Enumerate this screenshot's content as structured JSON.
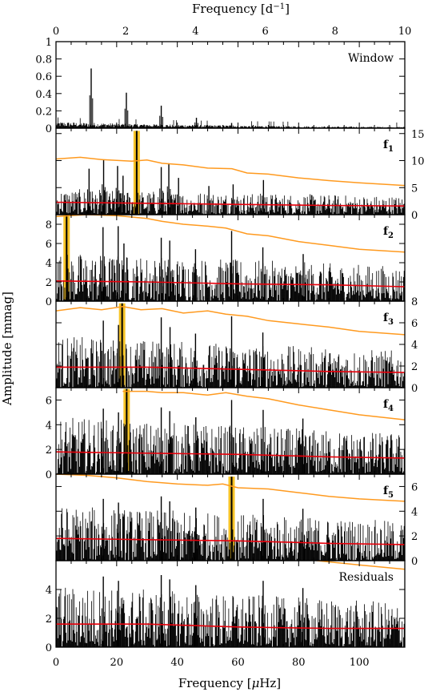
{
  "chart_data": {
    "type": "line",
    "x_axis_bottom": {
      "label_prefix": "Frequency [",
      "label_unit_mu": "μ",
      "label_unit_rest": "Hz]",
      "range": [
        0,
        115
      ],
      "ticks": [
        0,
        20,
        40,
        60,
        80,
        100
      ]
    },
    "x_axis_top": {
      "label_prefix": "Frequency [d",
      "label_exponent": "−1",
      "label_suffix": "]",
      "range": [
        0,
        10
      ],
      "ticks": [
        0,
        2,
        4,
        6,
        8,
        10
      ]
    },
    "y_axis_label": "Amplitude [mmag]",
    "panels": [
      {
        "label": "Window",
        "ylim": [
          0,
          1
        ],
        "ticks": [
          0,
          0.2,
          0.4,
          0.6,
          0.8,
          1
        ],
        "tick_labels": [
          "0",
          "0.2",
          "0.4",
          "0.6",
          "0.8",
          "1"
        ],
        "ticks_side": "left",
        "peaks": [
          {
            "x": 11.6,
            "y": 0.69
          },
          {
            "x": 23.2,
            "y": 0.41
          },
          {
            "x": 34.7,
            "y": 0.26
          },
          {
            "x": 46.3,
            "y": 0.12
          },
          {
            "x": 57.9,
            "y": 0.06
          }
        ],
        "noise_level": 0.05,
        "significance": [],
        "mean_noise": []
      },
      {
        "label": "f",
        "subscript": "1",
        "ylim": [
          0,
          16
        ],
        "ticks": [
          0,
          5,
          10,
          15
        ],
        "tick_labels": [
          "0",
          "5",
          "10",
          "15"
        ],
        "ticks_side": "right",
        "highlight": {
          "x": 26.6,
          "y": 15.5
        },
        "peaks": [
          {
            "x": 10.9,
            "y": 8.5
          },
          {
            "x": 15.7,
            "y": 10.2
          },
          {
            "x": 20.3,
            "y": 9.0
          },
          {
            "x": 22.1,
            "y": 7.2
          },
          {
            "x": 34.7,
            "y": 8.8
          },
          {
            "x": 37.2,
            "y": 9.5
          },
          {
            "x": 40.4,
            "y": 6.8
          },
          {
            "x": 50.4,
            "y": 5.3
          },
          {
            "x": 58.4,
            "y": 5.6
          },
          {
            "x": 68.4,
            "y": 6.4
          }
        ],
        "noise_level": 3.0,
        "significance": [
          {
            "x": 0,
            "y": 10.3
          },
          {
            "x": 8,
            "y": 10.6
          },
          {
            "x": 15,
            "y": 10.2
          },
          {
            "x": 25,
            "y": 9.9
          },
          {
            "x": 30,
            "y": 10.1
          },
          {
            "x": 35,
            "y": 9.5
          },
          {
            "x": 42,
            "y": 9.2
          },
          {
            "x": 50,
            "y": 8.6
          },
          {
            "x": 58,
            "y": 8.5
          },
          {
            "x": 63,
            "y": 7.7
          },
          {
            "x": 70,
            "y": 7.5
          },
          {
            "x": 80,
            "y": 6.8
          },
          {
            "x": 90,
            "y": 6.3
          },
          {
            "x": 100,
            "y": 5.9
          },
          {
            "x": 115,
            "y": 5.4
          }
        ],
        "mean_noise": [
          {
            "x": 0,
            "y": 2.3
          },
          {
            "x": 30,
            "y": 2.1
          },
          {
            "x": 60,
            "y": 1.9
          },
          {
            "x": 90,
            "y": 1.7
          },
          {
            "x": 115,
            "y": 1.6
          }
        ]
      },
      {
        "label": "f",
        "subscript": "2",
        "ylim": [
          0,
          9
        ],
        "ticks": [
          0,
          2,
          4,
          6,
          8
        ],
        "tick_labels": [
          "0",
          "2",
          "4",
          "6",
          "8"
        ],
        "ticks_side": "left",
        "highlight": {
          "x": 3.5,
          "y": 9.0
        },
        "peaks": [
          {
            "x": 15.5,
            "y": 7.7
          },
          {
            "x": 20.5,
            "y": 7.8
          },
          {
            "x": 22.4,
            "y": 6.0
          },
          {
            "x": 34.7,
            "y": 6.6
          },
          {
            "x": 37.5,
            "y": 6.3
          },
          {
            "x": 46.0,
            "y": 5.4
          },
          {
            "x": 57.9,
            "y": 7.3
          },
          {
            "x": 68.2,
            "y": 5.6
          },
          {
            "x": 81.5,
            "y": 4.9
          }
        ],
        "noise_level": 3.2,
        "significance": [
          {
            "x": 0,
            "y": 8.8
          },
          {
            "x": 10,
            "y": 9.0
          },
          {
            "x": 20,
            "y": 8.9
          },
          {
            "x": 30,
            "y": 8.6
          },
          {
            "x": 35,
            "y": 8.3
          },
          {
            "x": 42,
            "y": 8.0
          },
          {
            "x": 50,
            "y": 7.8
          },
          {
            "x": 56,
            "y": 7.6
          },
          {
            "x": 63,
            "y": 7.0
          },
          {
            "x": 70,
            "y": 6.8
          },
          {
            "x": 80,
            "y": 6.2
          },
          {
            "x": 90,
            "y": 5.8
          },
          {
            "x": 100,
            "y": 5.4
          },
          {
            "x": 115,
            "y": 5.1
          }
        ],
        "mean_noise": [
          {
            "x": 0,
            "y": 2.1
          },
          {
            "x": 30,
            "y": 2.0
          },
          {
            "x": 60,
            "y": 1.8
          },
          {
            "x": 90,
            "y": 1.7
          },
          {
            "x": 115,
            "y": 1.5
          }
        ]
      },
      {
        "label": "f",
        "subscript": "3",
        "ylim": [
          0,
          8
        ],
        "ticks": [
          0,
          2,
          4,
          6,
          8
        ],
        "tick_labels": [
          "0",
          "2",
          "4",
          "6",
          "8"
        ],
        "ticks_side": "right",
        "highlight": {
          "x": 21.8,
          "y": 7.8
        },
        "peaks": [
          {
            "x": 15.6,
            "y": 6.2
          },
          {
            "x": 20.6,
            "y": 5.8
          },
          {
            "x": 34.7,
            "y": 6.5
          },
          {
            "x": 37.6,
            "y": 5.6
          },
          {
            "x": 46.0,
            "y": 5.0
          },
          {
            "x": 57.9,
            "y": 6.6
          },
          {
            "x": 68.2,
            "y": 5.1
          }
        ],
        "noise_level": 3.0,
        "significance": [
          {
            "x": 0,
            "y": 7.1
          },
          {
            "x": 8,
            "y": 7.4
          },
          {
            "x": 15,
            "y": 7.2
          },
          {
            "x": 22,
            "y": 7.5
          },
          {
            "x": 28,
            "y": 7.2
          },
          {
            "x": 35,
            "y": 7.3
          },
          {
            "x": 42,
            "y": 6.9
          },
          {
            "x": 50,
            "y": 7.1
          },
          {
            "x": 56,
            "y": 6.8
          },
          {
            "x": 63,
            "y": 6.6
          },
          {
            "x": 70,
            "y": 6.2
          },
          {
            "x": 80,
            "y": 5.9
          },
          {
            "x": 90,
            "y": 5.6
          },
          {
            "x": 100,
            "y": 5.2
          },
          {
            "x": 115,
            "y": 4.9
          }
        ],
        "mean_noise": [
          {
            "x": 0,
            "y": 1.9
          },
          {
            "x": 30,
            "y": 1.9
          },
          {
            "x": 60,
            "y": 1.7
          },
          {
            "x": 90,
            "y": 1.5
          },
          {
            "x": 115,
            "y": 1.4
          }
        ]
      },
      {
        "label": "f",
        "subscript": "4",
        "ylim": [
          0,
          7
        ],
        "ticks": [
          0,
          2,
          4,
          6
        ],
        "tick_labels": [
          "0",
          "2",
          "4",
          "6"
        ],
        "ticks_side": "left",
        "highlight": {
          "x": 23.3,
          "y": 6.9
        },
        "peaks": [
          {
            "x": 15.6,
            "y": 5.3
          },
          {
            "x": 20.6,
            "y": 5.0
          },
          {
            "x": 34.7,
            "y": 5.4
          },
          {
            "x": 37.5,
            "y": 5.1
          },
          {
            "x": 46.1,
            "y": 4.6
          },
          {
            "x": 57.9,
            "y": 6.0
          },
          {
            "x": 68.3,
            "y": 5.2
          },
          {
            "x": 81.4,
            "y": 4.5
          }
        ],
        "noise_level": 2.9,
        "significance": [
          {
            "x": 22,
            "y": 6.7
          },
          {
            "x": 30,
            "y": 6.7
          },
          {
            "x": 35,
            "y": 6.6
          },
          {
            "x": 42,
            "y": 6.6
          },
          {
            "x": 50,
            "y": 6.4
          },
          {
            "x": 56,
            "y": 6.6
          },
          {
            "x": 63,
            "y": 6.3
          },
          {
            "x": 70,
            "y": 6.1
          },
          {
            "x": 80,
            "y": 5.6
          },
          {
            "x": 90,
            "y": 5.2
          },
          {
            "x": 100,
            "y": 4.8
          },
          {
            "x": 115,
            "y": 4.4
          }
        ],
        "mean_noise": [
          {
            "x": 0,
            "y": 1.8
          },
          {
            "x": 30,
            "y": 1.7
          },
          {
            "x": 60,
            "y": 1.6
          },
          {
            "x": 90,
            "y": 1.4
          },
          {
            "x": 115,
            "y": 1.3
          }
        ]
      },
      {
        "label": "f",
        "subscript": "5",
        "ylim": [
          0,
          7
        ],
        "ticks": [
          0,
          2,
          4,
          6
        ],
        "tick_labels": [
          "0",
          "2",
          "4",
          "6"
        ],
        "ticks_side": "right",
        "highlight": {
          "x": 57.9,
          "y": 6.8
        },
        "peaks": [
          {
            "x": 15.6,
            "y": 5.0
          },
          {
            "x": 20.6,
            "y": 4.7
          },
          {
            "x": 34.7,
            "y": 5.2
          },
          {
            "x": 37.5,
            "y": 4.8
          },
          {
            "x": 46.1,
            "y": 4.3
          },
          {
            "x": 68.3,
            "y": 5.0
          },
          {
            "x": 81.4,
            "y": 4.2
          }
        ],
        "noise_level": 2.8,
        "significance": [
          {
            "x": 0,
            "y": 7.0
          },
          {
            "x": 10,
            "y": 6.9
          },
          {
            "x": 20,
            "y": 6.7
          },
          {
            "x": 30,
            "y": 6.4
          },
          {
            "x": 40,
            "y": 6.2
          },
          {
            "x": 50,
            "y": 6.1
          },
          {
            "x": 55,
            "y": 6.2
          },
          {
            "x": 60,
            "y": 5.9
          },
          {
            "x": 70,
            "y": 5.8
          },
          {
            "x": 80,
            "y": 5.5
          },
          {
            "x": 90,
            "y": 5.2
          },
          {
            "x": 100,
            "y": 5.0
          },
          {
            "x": 115,
            "y": 4.8
          }
        ],
        "mean_noise": [
          {
            "x": 0,
            "y": 1.8
          },
          {
            "x": 30,
            "y": 1.7
          },
          {
            "x": 60,
            "y": 1.6
          },
          {
            "x": 90,
            "y": 1.4
          },
          {
            "x": 115,
            "y": 1.3
          }
        ]
      },
      {
        "label": "Residuals",
        "ylim": [
          0,
          6
        ],
        "ticks": [
          0,
          2,
          4
        ],
        "tick_labels": [
          "0",
          "2",
          "4"
        ],
        "ticks_side": "left",
        "peaks": [
          {
            "x": 15.6,
            "y": 4.9
          },
          {
            "x": 20.6,
            "y": 4.6
          },
          {
            "x": 34.7,
            "y": 5.0
          },
          {
            "x": 37.5,
            "y": 4.7
          },
          {
            "x": 46.1,
            "y": 4.3
          },
          {
            "x": 68.3,
            "y": 4.6
          },
          {
            "x": 81.4,
            "y": 4.1
          }
        ],
        "noise_level": 2.7,
        "significance": [
          {
            "x": 86,
            "y": 6.0
          },
          {
            "x": 100,
            "y": 5.7
          },
          {
            "x": 115,
            "y": 5.4
          }
        ],
        "mean_noise": [
          {
            "x": 0,
            "y": 1.6
          },
          {
            "x": 30,
            "y": 1.6
          },
          {
            "x": 60,
            "y": 1.4
          },
          {
            "x": 90,
            "y": 1.3
          },
          {
            "x": 115,
            "y": 1.3
          }
        ]
      }
    ],
    "colors": {
      "spectrum": "#000000",
      "significance_line": "#ff9a1f",
      "mean_noise_line": "#e8000b",
      "highlight": "#f5b800"
    }
  }
}
